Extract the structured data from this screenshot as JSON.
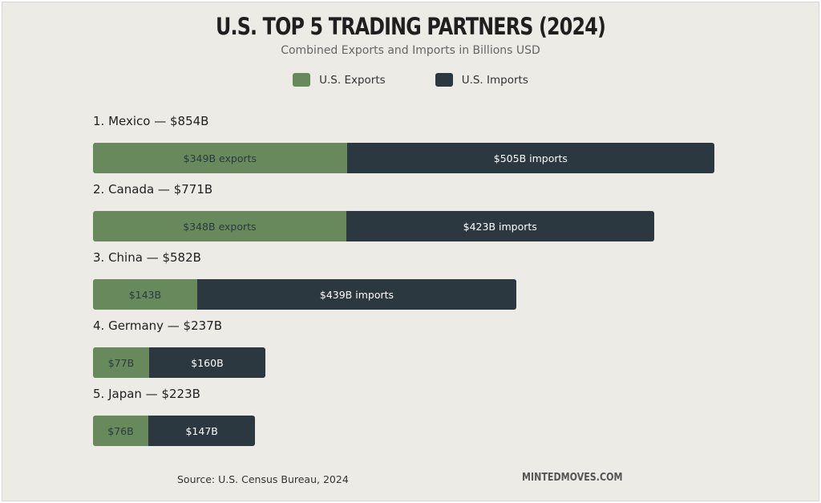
{
  "colors": {
    "exports": "#67895c",
    "imports": "#2c3840",
    "background": "#ecebe6"
  },
  "chart_data": {
    "type": "bar",
    "orientation": "horizontal-stacked",
    "title": "U.S. TOP 5 TRADING PARTNERS (2024)",
    "subtitle": "Combined Exports and Imports in Billions USD",
    "legend": [
      "U.S. Exports",
      "U.S. Imports"
    ],
    "legend_position": "top-center",
    "unit": "Billions USD",
    "rows": [
      {
        "label": "1. Mexico — $854B",
        "country": "Mexico",
        "total": 854,
        "exports": 349,
        "imports": 505,
        "exports_label": "$349B exports",
        "imports_label": "$505B imports"
      },
      {
        "label": "2. Canada — $771B",
        "country": "Canada",
        "total": 771,
        "exports": 348,
        "imports": 423,
        "exports_label": "$348B exports",
        "imports_label": "$423B imports"
      },
      {
        "label": "3. China — $582B",
        "country": "China",
        "total": 582,
        "exports": 143,
        "imports": 439,
        "exports_label": "$143B",
        "imports_label": "$439B imports"
      },
      {
        "label": "4. Germany — $237B",
        "country": "Germany",
        "total": 237,
        "exports": 77,
        "imports": 160,
        "exports_label": "$77B",
        "imports_label": "$160B"
      },
      {
        "label": "5. Japan — $223B",
        "country": "Japan",
        "total": 223,
        "exports": 76,
        "imports": 147,
        "exports_label": "$76B",
        "imports_label": "$147B"
      }
    ],
    "xlim": [
      0,
      854
    ]
  },
  "footer": {
    "source": "Source: U.S. Census Bureau, 2024",
    "brand": "MINTEDMOVES.COM"
  }
}
